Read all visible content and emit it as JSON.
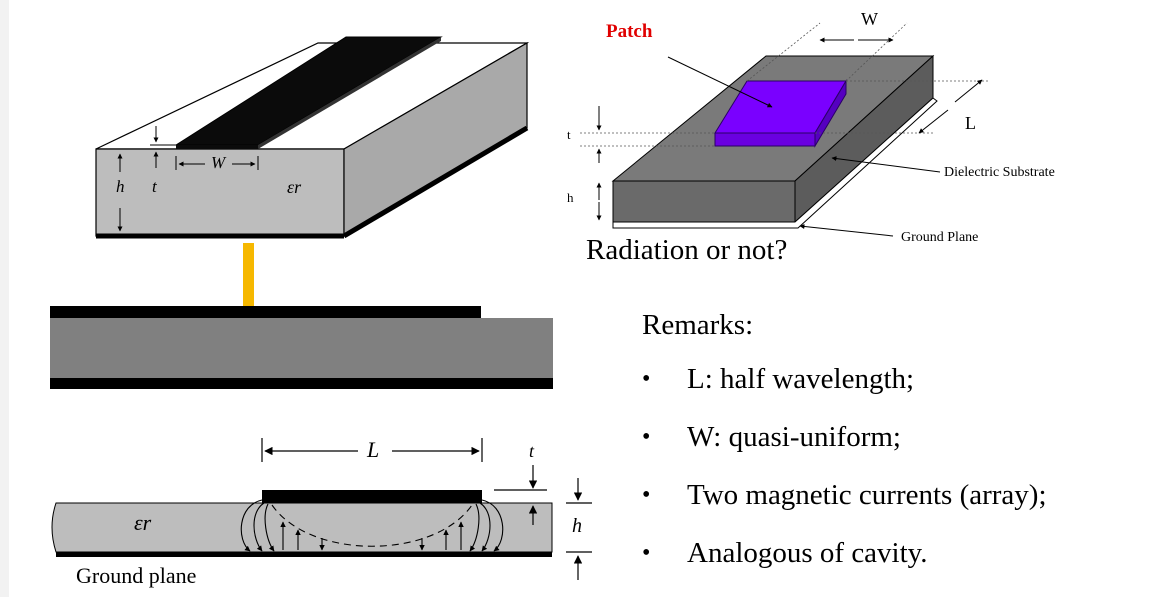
{
  "microstrip": {
    "h": "h",
    "t": "t",
    "w": "W",
    "epsilon": "εr"
  },
  "fringing": {
    "l": "L",
    "t": "t",
    "h": "h",
    "epsilon": "εr",
    "ground_plane": "Ground plane"
  },
  "patch3d": {
    "patch": "Patch",
    "w": "W",
    "l": "L",
    "t": "t",
    "h": "h",
    "dielectric": "Dielectric Substrate",
    "ground_plane": "Ground Plane"
  },
  "question": "Radiation or not?",
  "remarks": {
    "title": "Remarks:",
    "bullet": "•",
    "items": [
      "L: half wavelength;",
      "W: quasi-uniform;",
      "Two magnetic currents (array);",
      "Analogous of cavity."
    ]
  },
  "colors": {
    "patch": "#7a00ff",
    "feed": "#f6b800",
    "patch_label": "#e00000",
    "substrate": "#808080"
  }
}
